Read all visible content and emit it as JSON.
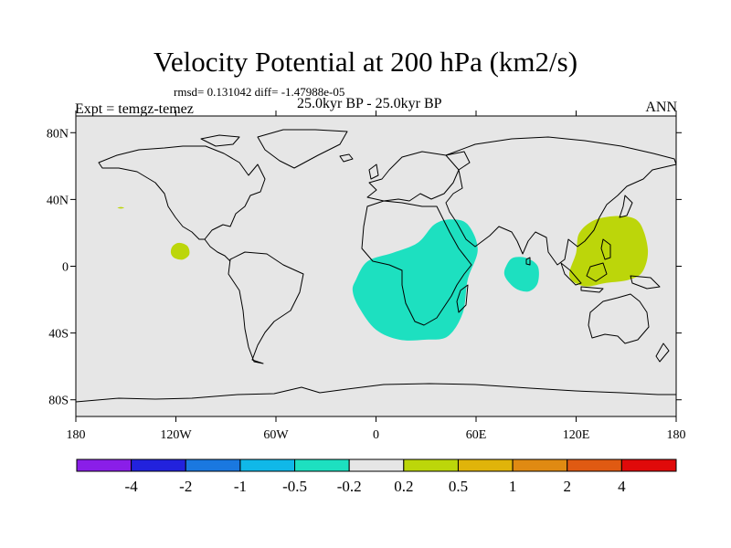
{
  "title": "Velocity Potential at 200 hPa (km2/s)",
  "subtitle": "rmsd= 0.131042 diff= -1.47988e-05",
  "left_label": "Expt = temgz-temez",
  "center_label": "25.0kyr BP - 25.0kyr BP",
  "right_label": "ANN",
  "colors": {
    "ocean": "#e6e6e6",
    "coast": "#000000",
    "negative_fill": "#1de0c0",
    "positive_fill": "#bcd60a"
  },
  "chart_data": {
    "type": "map",
    "projection": "cylindrical-equidistant",
    "lon_range": [
      -180,
      180
    ],
    "lat_range": [
      -90,
      90
    ],
    "x_ticks": [
      {
        "lon": -180,
        "label": "180"
      },
      {
        "lon": -120,
        "label": "120W"
      },
      {
        "lon": -60,
        "label": "60W"
      },
      {
        "lon": 0,
        "label": "0"
      },
      {
        "lon": 60,
        "label": "60E"
      },
      {
        "lon": 120,
        "label": "120E"
      },
      {
        "lon": 180,
        "label": "180"
      }
    ],
    "y_ticks": [
      {
        "lat": 80,
        "label": "80N"
      },
      {
        "lat": 40,
        "label": "40N"
      },
      {
        "lat": 0,
        "label": "0"
      },
      {
        "lat": -40,
        "label": "40S"
      },
      {
        "lat": -80,
        "label": "80S"
      }
    ],
    "anomaly_regions": [
      {
        "name": "africa-negative",
        "sign": "negative",
        "polygon": [
          [
            -12,
            -8
          ],
          [
            -5,
            3
          ],
          [
            10,
            8
          ],
          [
            25,
            14
          ],
          [
            35,
            25
          ],
          [
            45,
            28
          ],
          [
            55,
            25
          ],
          [
            61,
            10
          ],
          [
            55,
            -8
          ],
          [
            52,
            -28
          ],
          [
            43,
            -42
          ],
          [
            30,
            -44
          ],
          [
            14,
            -44
          ],
          [
            0,
            -38
          ],
          [
            -10,
            -25
          ],
          [
            -14,
            -15
          ]
        ]
      },
      {
        "name": "indian-ocean-negative",
        "sign": "negative",
        "polygon": [
          [
            78,
            0
          ],
          [
            82,
            5
          ],
          [
            90,
            5
          ],
          [
            97,
            0
          ],
          [
            97,
            -10
          ],
          [
            92,
            -15
          ],
          [
            85,
            -14
          ],
          [
            80,
            -10
          ],
          [
            77,
            -5
          ]
        ]
      },
      {
        "name": "pacific-warm-pool-positive",
        "sign": "positive",
        "polygon": [
          [
            122,
            20
          ],
          [
            132,
            28
          ],
          [
            148,
            30
          ],
          [
            158,
            26
          ],
          [
            163,
            10
          ],
          [
            160,
            -3
          ],
          [
            152,
            -8
          ],
          [
            138,
            -10
          ],
          [
            125,
            -12
          ],
          [
            116,
            -6
          ],
          [
            120,
            8
          ]
        ]
      },
      {
        "name": "east-pacific-positive",
        "sign": "positive",
        "polygon": [
          [
            -122,
            12
          ],
          [
            -118,
            14
          ],
          [
            -113,
            12
          ],
          [
            -112,
            7
          ],
          [
            -116,
            4
          ],
          [
            -121,
            5
          ],
          [
            -123,
            8
          ]
        ]
      },
      {
        "name": "north-pacific-speck",
        "sign": "positive",
        "polygon": [
          [
            -155,
            35
          ],
          [
            -153,
            35.5
          ],
          [
            -151,
            35
          ],
          [
            -153,
            34.5
          ]
        ]
      }
    ],
    "colorbar": {
      "colors": [
        "#8a1ee8",
        "#2222dd",
        "#1a78e0",
        "#10b8e8",
        "#1de0c0",
        "#e6e6e6",
        "#bcd60a",
        "#e0b40a",
        "#e08a12",
        "#e05a12",
        "#e00a0a"
      ],
      "labels": [
        "-4",
        "-2",
        "-1",
        "-0.5",
        "-0.2",
        "0.2",
        "0.5",
        "1",
        "2",
        "4"
      ]
    }
  }
}
